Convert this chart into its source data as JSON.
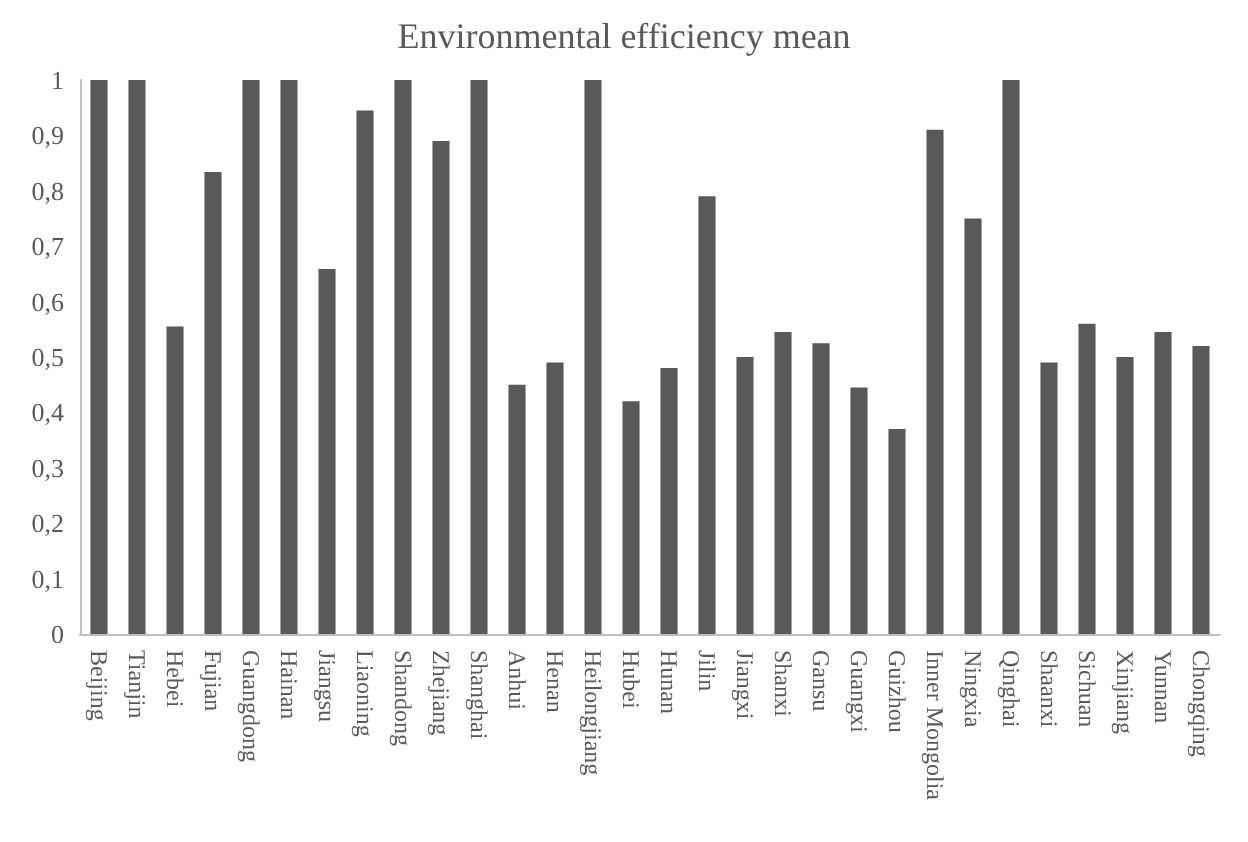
{
  "chart_data": {
    "type": "bar",
    "title": "Environmental efficiency mean",
    "categories": [
      "Beijing",
      "Tianjin",
      "Hebei",
      "Fujian",
      "Guangdong",
      "Hainan",
      "Jiangsu",
      "Liaoning",
      "Shandong",
      "Zhejiang",
      "Shanghai",
      "Anhui",
      "Henan",
      "Heilongjiang",
      "Hubei",
      "Hunan",
      "Jilin",
      "Jiangxi",
      "Shanxi",
      "Gansu",
      "Guangxi",
      "Guizhou",
      "Inner Mongolia",
      "Ningxia",
      "Qinghai",
      "Shaanxi",
      "Sichuan",
      "Xinjiang",
      "Yunnan",
      "Chongqing"
    ],
    "values": [
      1,
      1,
      0.555,
      0.834,
      1,
      1,
      0.659,
      0.945,
      1,
      0.89,
      1,
      0.45,
      0.49,
      1,
      0.42,
      0.48,
      0.79,
      0.5,
      0.545,
      0.525,
      0.445,
      0.37,
      0.91,
      0.75,
      1,
      0.49,
      0.56,
      0.5,
      0.545,
      0.52
    ],
    "color": "#595959",
    "ylim": [
      0,
      1
    ],
    "yticks": [
      0,
      {
        "value": 0.1,
        "label": "0,1"
      },
      {
        "value": 0.2,
        "label": "0,2"
      },
      {
        "value": 0.3,
        "label": "0,3"
      },
      {
        "value": 0.4,
        "label": "0,4"
      },
      {
        "value": 0.5,
        "label": "0,5"
      },
      {
        "value": 0.6,
        "label": "0,6"
      },
      {
        "value": 0.7,
        "label": "0,7"
      },
      {
        "value": 0.8,
        "label": "0,8"
      },
      {
        "value": 0.9,
        "label": "0,9"
      },
      1
    ],
    "grid": false
  }
}
